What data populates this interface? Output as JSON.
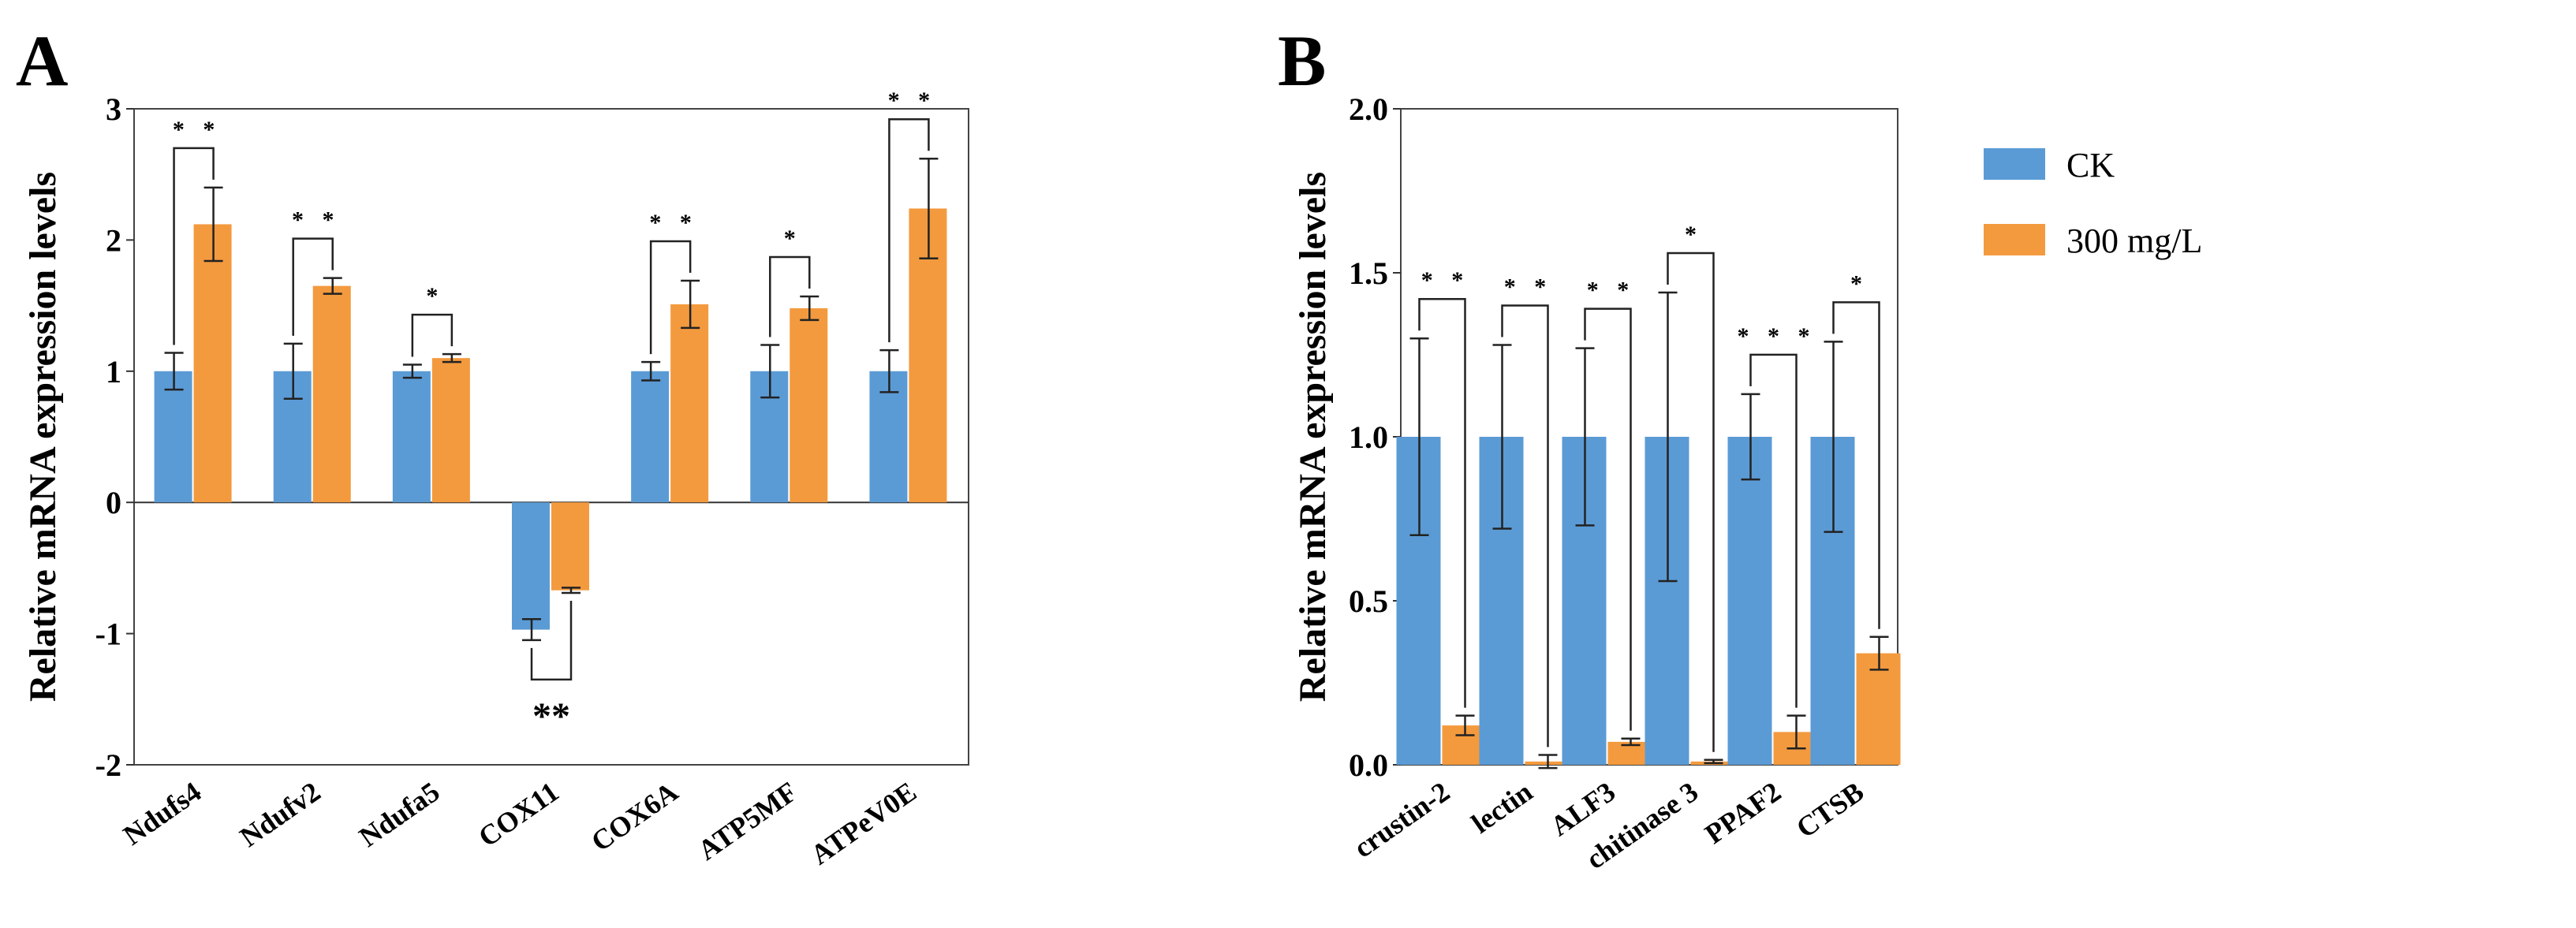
{
  "colors": {
    "ck": "#5b9bd5",
    "treat": "#f39a3e"
  },
  "legend": {
    "ck": "CK",
    "treat": "300 mg/L"
  },
  "panels": {
    "a": "A",
    "b": "B"
  },
  "chart_data": [
    {
      "type": "bar",
      "panel": "A",
      "ylabel": "Relative mRNA expression levels",
      "ylim": [
        -2,
        3
      ],
      "yticks": [
        "3",
        "2",
        "1",
        "0",
        "-1",
        "-2"
      ],
      "categories": [
        "Ndufs4",
        "Ndufv2",
        "Ndufa5",
        "COX11",
        "COX6A",
        "ATP5MF",
        "ATPeV0E"
      ],
      "series": [
        {
          "name": "CK",
          "values": [
            1.0,
            1.0,
            1.0,
            -0.97,
            1.0,
            1.0,
            1.0
          ],
          "errors": [
            0.14,
            0.21,
            0.05,
            0.08,
            0.07,
            0.2,
            0.16
          ]
        },
        {
          "name": "300 mg/L",
          "values": [
            2.12,
            1.65,
            1.1,
            -0.67,
            1.51,
            1.48,
            2.24
          ],
          "errors": [
            0.28,
            0.06,
            0.03,
            0.02,
            0.18,
            0.09,
            0.38
          ]
        }
      ],
      "significance": [
        "* *",
        "* *",
        "*",
        "**",
        "* *",
        "*",
        "* *"
      ]
    },
    {
      "type": "bar",
      "panel": "B",
      "ylabel": "Relative mRNA expression levels",
      "ylim": [
        0,
        2.0
      ],
      "yticks": [
        "2.0",
        "1.5",
        "1.0",
        "0.5",
        "0.0"
      ],
      "categories": [
        "crustin-2",
        "lectin",
        "ALF3",
        "chitinase 3",
        "PPAF2",
        "CTSB"
      ],
      "series": [
        {
          "name": "CK",
          "values": [
            1.0,
            1.0,
            1.0,
            1.0,
            1.0,
            1.0
          ],
          "errors": [
            0.3,
            0.28,
            0.27,
            0.44,
            0.13,
            0.29
          ]
        },
        {
          "name": "300 mg/L",
          "values": [
            0.12,
            0.01,
            0.07,
            0.01,
            0.1,
            0.34
          ],
          "errors": [
            0.03,
            0.02,
            0.01,
            0.005,
            0.05,
            0.05
          ]
        }
      ],
      "significance": [
        "* *",
        "* *",
        "* *",
        "*",
        "* * *",
        "*"
      ]
    }
  ]
}
